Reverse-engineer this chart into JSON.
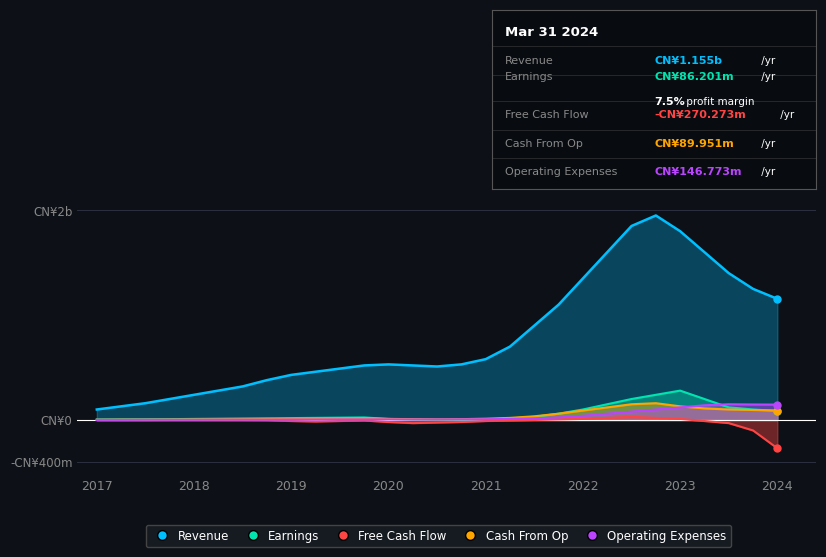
{
  "bg_color": "#0d1117",
  "years": [
    2017,
    2017.25,
    2017.5,
    2017.75,
    2018,
    2018.25,
    2018.5,
    2018.75,
    2019,
    2019.25,
    2019.5,
    2019.75,
    2020,
    2020.25,
    2020.5,
    2020.75,
    2021,
    2021.25,
    2021.5,
    2021.75,
    2022,
    2022.25,
    2022.5,
    2022.75,
    2023,
    2023.25,
    2023.5,
    2023.75,
    2024
  ],
  "revenue": [
    100,
    130,
    160,
    200,
    240,
    280,
    320,
    380,
    430,
    460,
    490,
    520,
    530,
    520,
    510,
    530,
    580,
    700,
    900,
    1100,
    1350,
    1600,
    1850,
    1950,
    1800,
    1600,
    1400,
    1250,
    1155
  ],
  "earnings": [
    5,
    6,
    7,
    8,
    10,
    12,
    14,
    16,
    18,
    20,
    22,
    24,
    10,
    5,
    2,
    3,
    5,
    15,
    30,
    60,
    100,
    150,
    200,
    240,
    280,
    200,
    120,
    100,
    86.201
  ],
  "free_cash_flow": [
    -2,
    -2,
    -2,
    -1,
    -1,
    -1,
    -1,
    -2,
    -10,
    -15,
    -10,
    -5,
    -20,
    -30,
    -25,
    -20,
    -10,
    -5,
    0,
    5,
    10,
    20,
    30,
    20,
    10,
    -10,
    -30,
    -100,
    -270.273
  ],
  "cash_from_op": [
    2,
    3,
    3,
    4,
    5,
    6,
    7,
    8,
    10,
    12,
    14,
    16,
    10,
    8,
    6,
    8,
    12,
    20,
    35,
    60,
    90,
    120,
    150,
    160,
    130,
    110,
    100,
    95,
    89.951
  ],
  "operating_expenses": [
    1,
    1,
    2,
    2,
    2,
    3,
    3,
    3,
    4,
    4,
    5,
    5,
    5,
    5,
    5,
    6,
    7,
    10,
    15,
    25,
    40,
    60,
    80,
    100,
    120,
    140,
    150,
    148,
    146.773
  ],
  "revenue_color": "#00bfff",
  "earnings_color": "#00e5b0",
  "fcf_color": "#ff4444",
  "cashop_color": "#ffa500",
  "opex_color": "#bb44ff",
  "ytick_labels": [
    "-CN¥400m",
    "CN¥0",
    "CN¥2b"
  ],
  "ytick_values": [
    -400,
    0,
    2000
  ],
  "xtick_labels": [
    "2017",
    "2018",
    "2019",
    "2020",
    "2021",
    "2022",
    "2023",
    "2024"
  ],
  "xtick_values": [
    2017,
    2018,
    2019,
    2020,
    2021,
    2022,
    2023,
    2024
  ],
  "info_box": {
    "date": "Mar 31 2024",
    "revenue_label": "Revenue",
    "revenue_val": "CN¥1.155b",
    "revenue_unit": " /yr",
    "earnings_label": "Earnings",
    "earnings_val": "CN¥86.201m",
    "earnings_unit": " /yr",
    "margin": "7.5%",
    "margin_text": " profit margin",
    "fcf_label": "Free Cash Flow",
    "fcf_val": "-CN¥270.273m",
    "fcf_unit": " /yr",
    "cashop_label": "Cash From Op",
    "cashop_val": "CN¥89.951m",
    "cashop_unit": " /yr",
    "opex_label": "Operating Expenses",
    "opex_val": "CN¥146.773m",
    "opex_unit": " /yr"
  },
  "legend_entries": [
    "Revenue",
    "Earnings",
    "Free Cash Flow",
    "Cash From Op",
    "Operating Expenses"
  ],
  "legend_colors": [
    "#00bfff",
    "#00e5b0",
    "#ff4444",
    "#ffa500",
    "#bb44ff"
  ]
}
